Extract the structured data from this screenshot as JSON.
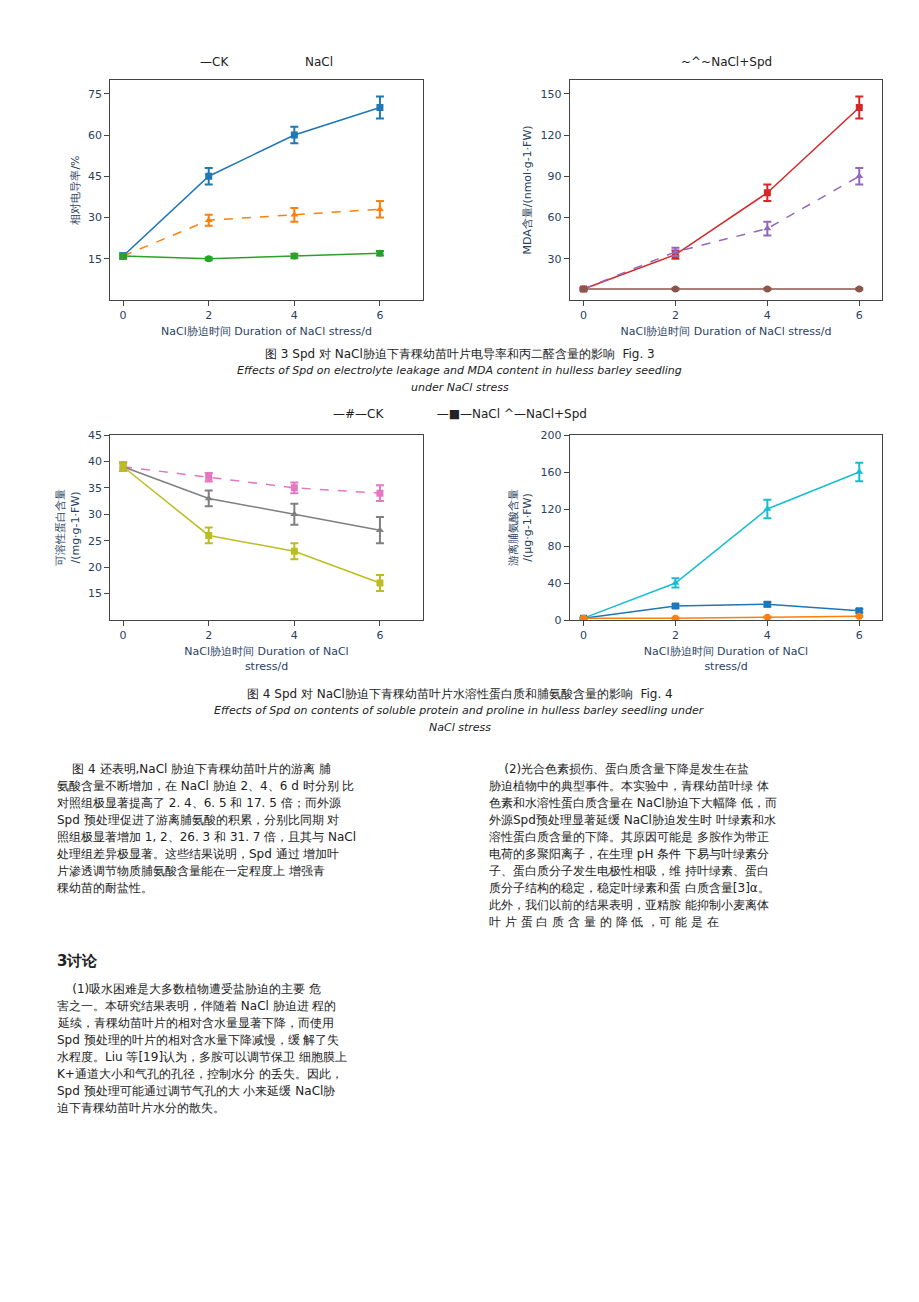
{
  "chart_data": [
    {
      "type": "line",
      "xlabel": "NaCl胁迫时间 Duration of NaCl stress/d",
      "ylabel": "相对电导率/%",
      "x": [
        0,
        2,
        4,
        6
      ],
      "xlim": [
        -0.3,
        7.0
      ],
      "xticks": [
        0,
        2,
        4,
        6
      ],
      "ylim": [
        0,
        80
      ],
      "yticks": [
        15,
        30,
        45,
        60,
        75
      ],
      "grid": false,
      "annotations": [
        "—CK",
        "NaCl"
      ],
      "series": [
        {
          "values": [
            16,
            45,
            60,
            70
          ],
          "error": [
            1.0,
            3.0,
            3.0,
            4.0
          ],
          "marker": "square",
          "line_style": "solid"
        },
        {
          "values": [
            16,
            29,
            31,
            33
          ],
          "error": [
            0.5,
            2.0,
            2.5,
            3.0
          ],
          "marker": "triangle-up",
          "line_style": "dash"
        },
        {
          "values": [
            16,
            15,
            16,
            17
          ],
          "error": [
            0.5,
            0.5,
            0.8,
            0.8
          ],
          "marker": "circle",
          "line_style": "solid"
        }
      ]
    },
    {
      "type": "line",
      "xlabel": "NaCl胁迫时间 Duration of NaCl stress/d",
      "ylabel": "MDA含量/(nmol·g-1·FW)",
      "x": [
        0,
        2,
        4,
        6
      ],
      "xlim": [
        -0.3,
        6.5
      ],
      "xticks": [
        0,
        2,
        4,
        6
      ],
      "ylim": [
        0,
        160
      ],
      "yticks": [
        30,
        60,
        90,
        120,
        150
      ],
      "grid": false,
      "annotations": [
        "~^~NaCl+Spd"
      ],
      "series": [
        {
          "values": [
            8,
            33,
            78,
            140
          ],
          "error": [
            1.0,
            3.0,
            6.0,
            8.0
          ],
          "marker": "square",
          "line_style": "solid"
        },
        {
          "values": [
            8,
            35,
            52,
            90
          ],
          "error": [
            1.0,
            3.0,
            5.0,
            6.0
          ],
          "marker": "triangle-up",
          "line_style": "dash"
        },
        {
          "values": [
            8,
            8,
            8,
            8
          ],
          "error": [
            0.5,
            0.5,
            0.5,
            0.5
          ],
          "marker": "circle",
          "line_style": "solid"
        }
      ]
    },
    {
      "type": "line",
      "xlabel": "NaCl胁迫时间 Duration of NaCl\nstress/d",
      "ylabel": "可溶性蛋白含量\n/(mg·g-1·FW)",
      "x": [
        0,
        2,
        4,
        6
      ],
      "xlim": [
        -0.3,
        7.0
      ],
      "xticks": [
        0,
        2,
        4,
        6
      ],
      "ylim": [
        10,
        45
      ],
      "yticks": [
        15,
        20,
        25,
        30,
        35,
        40,
        45
      ],
      "grid": false,
      "series": [
        {
          "values": [
            39,
            37,
            35,
            34
          ],
          "error": [
            0.8,
            0.8,
            1.0,
            1.5
          ],
          "marker": "square",
          "line_style": "dash"
        },
        {
          "values": [
            39,
            33,
            30,
            27
          ],
          "error": [
            0.8,
            1.5,
            2.0,
            2.5
          ],
          "marker": "triangle-up",
          "line_style": "solid"
        },
        {
          "values": [
            39,
            26,
            23,
            17
          ],
          "error": [
            0.8,
            1.5,
            1.5,
            1.5
          ],
          "marker": "square",
          "line_style": "solid"
        }
      ]
    },
    {
      "type": "line",
      "xlabel": "NaCl胁迫时间 Duration of NaCl\nstress/d",
      "ylabel": "游离脯氨酸含量\n/(μg·g-1·FW)",
      "x": [
        0,
        2,
        4,
        6
      ],
      "xlim": [
        -0.3,
        6.5
      ],
      "xticks": [
        0,
        2,
        4,
        6
      ],
      "ylim": [
        0,
        200
      ],
      "yticks": [
        0,
        40,
        80,
        120,
        160,
        200
      ],
      "grid": false,
      "series": [
        {
          "values": [
            2,
            40,
            120,
            160
          ],
          "error": [
            0.5,
            5.0,
            10.0,
            10.0
          ],
          "marker": "triangle-up",
          "line_style": "solid"
        },
        {
          "values": [
            2,
            15,
            17,
            10
          ],
          "error": [
            0.3,
            2.0,
            2.5,
            2.0
          ],
          "marker": "square",
          "line_style": "solid"
        },
        {
          "values": [
            2,
            2,
            3,
            4
          ],
          "error": [
            0.3,
            0.3,
            0.5,
            0.5
          ],
          "marker": "circle",
          "line_style": "solid"
        }
      ]
    }
  ],
  "annotations": {
    "fig3_caption": [
      "图 3 Spd 对 NaCl胁迫下青稞幼苗叶片电导率和丙二醛含量的影响  Fig. 3",
      "Effects of Spd on electrolyte leakage and MDA content in hulless barley seedling",
      "under NaCl stress"
    ],
    "fig4_legend": "—#—CK              —■—NaCl ^—NaCl+Spd",
    "fig4_caption": [
      "图 4 Spd 对 NaCl胁迫下青稞幼苗叶片水溶性蛋白质和脯氨酸含量的影响  Fig. 4",
      "Effects of Spd on contents of soluble protein and proline in hulless barley seedling under",
      "NaCl stress"
    ],
    "text_left": [
      "    图 4 还表明,NaCl 胁迫下青稞幼苗叶片的游离 脯",
      "氨酸含量不断增加，在 NaCl 胁迫 2、4、6 d 时分别 比",
      "对照组极显著提高了 2. 4、6. 5 和 17. 5 倍；而外源",
      "Spd 预处理促进了游离脯氨酸的积累，分别比同期 对",
      "照组极显著增加 1, 2、26. 3 和 31. 7 倍，且其与 NaCl",
      "处理组差异极显著。这些结果说明，Spd 通过 增加叶",
      "片渗透调节物质脯氨酸含量能在一定程度上 增强青",
      "稞幼苗的耐盐性。"
    ],
    "text_right": [
      "    (2)光合色素损伤、蛋白质含量下降是发生在盐",
      "胁迫植物中的典型事件。本实验中，青稞幼苗叶绿 体",
      "色素和水溶性蛋白质含量在 NaCl胁迫下大幅降 低，而",
      "外源Spd预处理显著延缓 NaCl胁迫发生时 叶绿素和水",
      "溶性蛋白质含量的下降。其原因可能是 多胺作为带正",
      "电荷的多聚阳离子，在生理 pH 条件 下易与叶绿素分",
      "子、蛋白质分子发生电极性相吸，维 持叶绿素、蛋白",
      "质分子结构的稳定，稳定叶绿素和蛋 白质含量[3]α。",
      "此外，我们以前的结果表明，亚精胺 能抑制小麦离体",
      "叶 片 蛋 白 质 含 量 的 降 低 ，可 能 是 在"
    ],
    "section_title": "3讨论",
    "text_section": [
      "    (1)吸水困难是大多数植物遭受盐胁迫的主要 危",
      "害之一。本研究结果表明，伴随着 NaCl 胁迫进 程的",
      "延续，青稞幼苗叶片的相对含水量显著下降，而使用",
      "Spd 预处理的叶片的相对含水量下降减慢，缓 解了失",
      "水程度。Liu 等[19]认为，多胺可以调节保卫 细胞膜上",
      "K+通道大小和气孔的孔径，控制水分 的丢失。因此，",
      "Spd 预处理可能通过调节气孔的大 小来延缓 NaCl胁",
      "迫下青稞幼苗叶片水分的散失。"
    ]
  }
}
